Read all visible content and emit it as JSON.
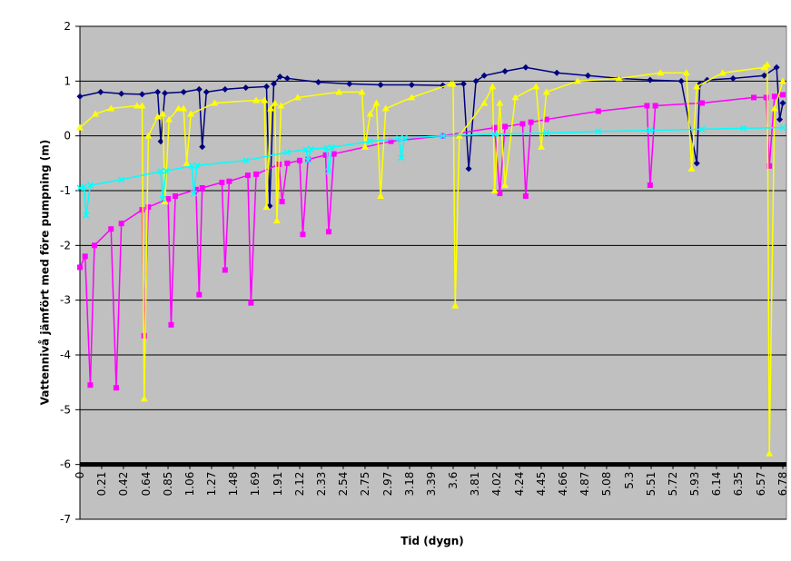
{
  "chart_data": {
    "type": "line",
    "x_label": "Tid (dygn)",
    "y_label": "Vattennivå jämfört med före pumpning (m)",
    "xlim": [
      0,
      6.78
    ],
    "xticks": [
      0,
      0.21,
      0.42,
      0.64,
      0.85,
      1.06,
      1.27,
      1.48,
      1.69,
      1.91,
      2.12,
      2.33,
      2.54,
      2.75,
      2.97,
      3.18,
      3.39,
      3.6,
      3.81,
      4.02,
      4.24,
      4.45,
      4.66,
      4.87,
      5.08,
      5.3,
      5.51,
      5.72,
      5.93,
      6.14,
      6.35,
      6.57,
      6.78
    ],
    "ylim": [
      -7,
      2
    ],
    "yticks": [
      -7,
      -6,
      -5,
      -4,
      -3,
      -2,
      -1,
      0,
      1,
      2
    ],
    "x_axis_crosses_at": -6,
    "grid": true,
    "background": "#c0c0c0",
    "series": [
      {
        "color": "#000080",
        "marker": "diamond",
        "x": [
          0,
          0.2,
          0.4,
          0.6,
          0.75,
          0.78,
          0.82,
          1.0,
          1.15,
          1.18,
          1.22,
          1.4,
          1.6,
          1.8,
          1.83,
          1.87,
          1.93,
          2.0,
          2.3,
          2.6,
          2.9,
          3.2,
          3.5,
          3.7,
          3.75,
          3.82,
          3.9,
          4.1,
          4.3,
          4.6,
          4.9,
          5.2,
          5.5,
          5.8,
          5.95,
          5.98,
          6.05,
          6.3,
          6.6,
          6.72,
          6.75,
          6.78
        ],
        "values": [
          0.72,
          0.8,
          0.77,
          0.76,
          0.8,
          -0.1,
          0.78,
          0.8,
          0.85,
          -0.2,
          0.8,
          0.85,
          0.88,
          0.9,
          -1.28,
          0.95,
          1.08,
          1.05,
          0.98,
          0.95,
          0.93,
          0.93,
          0.92,
          0.95,
          -0.6,
          1.0,
          1.1,
          1.18,
          1.25,
          1.15,
          1.1,
          1.05,
          1.02,
          1.0,
          -0.5,
          0.95,
          1.02,
          1.05,
          1.1,
          1.25,
          0.3,
          0.6
        ]
      },
      {
        "color": "#ff00ff",
        "marker": "square",
        "x": [
          0,
          0.05,
          0.1,
          0.14,
          0.3,
          0.35,
          0.4,
          0.6,
          0.62,
          0.66,
          0.85,
          0.88,
          0.92,
          1.12,
          1.15,
          1.18,
          1.37,
          1.4,
          1.44,
          1.62,
          1.65,
          1.7,
          1.92,
          1.95,
          2.0,
          2.12,
          2.15,
          2.2,
          2.37,
          2.4,
          2.45,
          3.0,
          3.5,
          4.0,
          4.05,
          4.1,
          4.27,
          4.3,
          4.35,
          4.5,
          5.0,
          5.47,
          5.5,
          5.55,
          6.0,
          6.5,
          6.62,
          6.65,
          6.7,
          6.78
        ],
        "values": [
          -2.4,
          -2.2,
          -4.55,
          -2.0,
          -1.7,
          -4.6,
          -1.6,
          -1.35,
          -3.65,
          -1.3,
          -1.15,
          -3.45,
          -1.1,
          -0.98,
          -2.9,
          -0.95,
          -0.85,
          -2.45,
          -0.83,
          -0.72,
          -3.05,
          -0.7,
          -0.52,
          -1.2,
          -0.5,
          -0.45,
          -1.8,
          -0.43,
          -0.35,
          -1.75,
          -0.33,
          -0.1,
          0.0,
          0.15,
          -1.05,
          0.17,
          0.22,
          -1.1,
          0.25,
          0.3,
          0.45,
          0.55,
          -0.9,
          0.55,
          0.6,
          0.7,
          0.7,
          -0.55,
          0.72,
          0.75
        ]
      },
      {
        "color": "#ffff00",
        "marker": "triangle",
        "x": [
          0,
          0.15,
          0.3,
          0.55,
          0.6,
          0.62,
          0.66,
          0.75,
          0.8,
          0.82,
          0.86,
          0.95,
          1.0,
          1.03,
          1.07,
          1.3,
          1.7,
          1.78,
          1.8,
          1.84,
          1.88,
          1.9,
          1.94,
          2.1,
          2.5,
          2.72,
          2.75,
          2.8,
          2.86,
          2.9,
          2.95,
          3.2,
          3.58,
          3.6,
          3.62,
          3.66,
          3.9,
          3.98,
          4.0,
          4.05,
          4.1,
          4.2,
          4.4,
          4.45,
          4.5,
          4.8,
          5.2,
          5.6,
          5.85,
          5.9,
          5.95,
          6.2,
          6.6,
          6.63,
          6.65,
          6.7,
          6.78
        ],
        "values": [
          0.15,
          0.4,
          0.5,
          0.55,
          0.55,
          -4.8,
          0.0,
          0.35,
          0.4,
          -1.2,
          0.3,
          0.5,
          0.5,
          -0.5,
          0.4,
          0.6,
          0.65,
          0.65,
          -1.3,
          0.5,
          0.6,
          -1.55,
          0.55,
          0.7,
          0.8,
          0.8,
          -0.2,
          0.4,
          0.6,
          -1.1,
          0.5,
          0.7,
          0.95,
          0.95,
          -3.1,
          0.0,
          0.6,
          0.9,
          -1.0,
          0.6,
          -0.9,
          0.7,
          0.9,
          -0.2,
          0.8,
          1.0,
          1.05,
          1.15,
          1.15,
          -0.6,
          0.9,
          1.15,
          1.25,
          1.3,
          -5.8,
          0.5,
          1.0
        ]
      },
      {
        "color": "#00ffff",
        "marker": "x",
        "x": [
          0,
          0.04,
          0.06,
          0.1,
          0.4,
          0.78,
          0.8,
          0.83,
          1.08,
          1.1,
          1.13,
          1.6,
          2.0,
          2.18,
          2.2,
          2.23,
          2.38,
          2.4,
          2.43,
          2.8,
          3.08,
          3.1,
          3.13,
          3.5,
          4.0,
          4.5,
          5.0,
          5.5,
          6.0,
          6.4,
          6.78
        ],
        "values": [
          -0.95,
          -0.93,
          -1.45,
          -0.9,
          -0.8,
          -0.65,
          -1.15,
          -0.64,
          -0.55,
          -1.05,
          -0.54,
          -0.45,
          -0.3,
          -0.25,
          -0.45,
          -0.24,
          -0.22,
          -0.65,
          -0.21,
          -0.1,
          -0.05,
          -0.4,
          -0.04,
          0.0,
          0.03,
          0.05,
          0.08,
          0.1,
          0.12,
          0.14,
          0.15
        ]
      }
    ]
  }
}
